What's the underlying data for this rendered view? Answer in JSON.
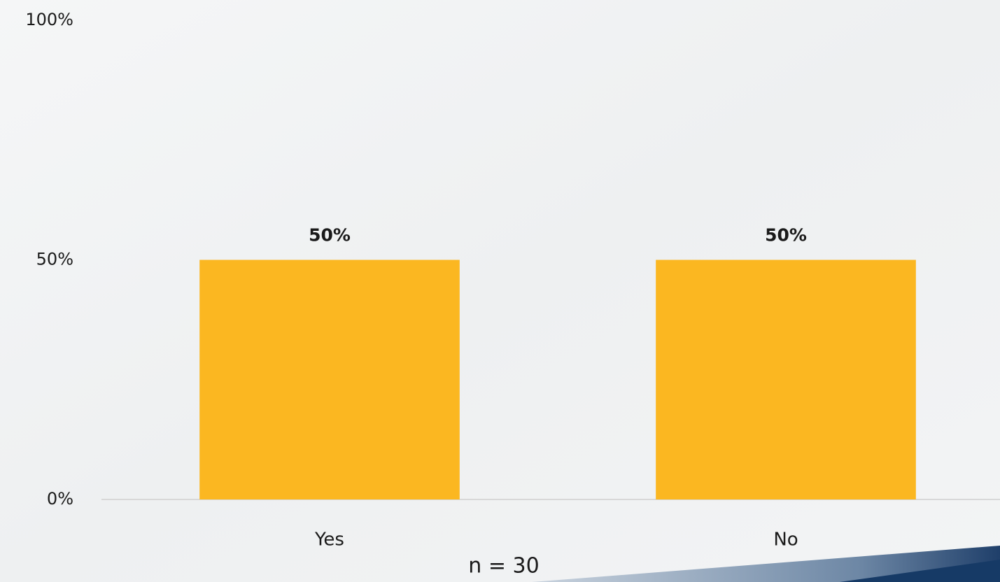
{
  "chart_data": {
    "type": "bar",
    "categories": [
      "Yes",
      "No"
    ],
    "values": [
      50,
      50
    ],
    "value_labels": [
      "50%",
      "50%"
    ],
    "color": "#fbb721",
    "ylim": [
      0,
      100
    ],
    "yticks": [
      {
        "value": 0,
        "label": "0%"
      },
      {
        "value": 50,
        "label": "50%"
      },
      {
        "value": 100,
        "label": "100%"
      }
    ],
    "annotation": "n = 30"
  }
}
